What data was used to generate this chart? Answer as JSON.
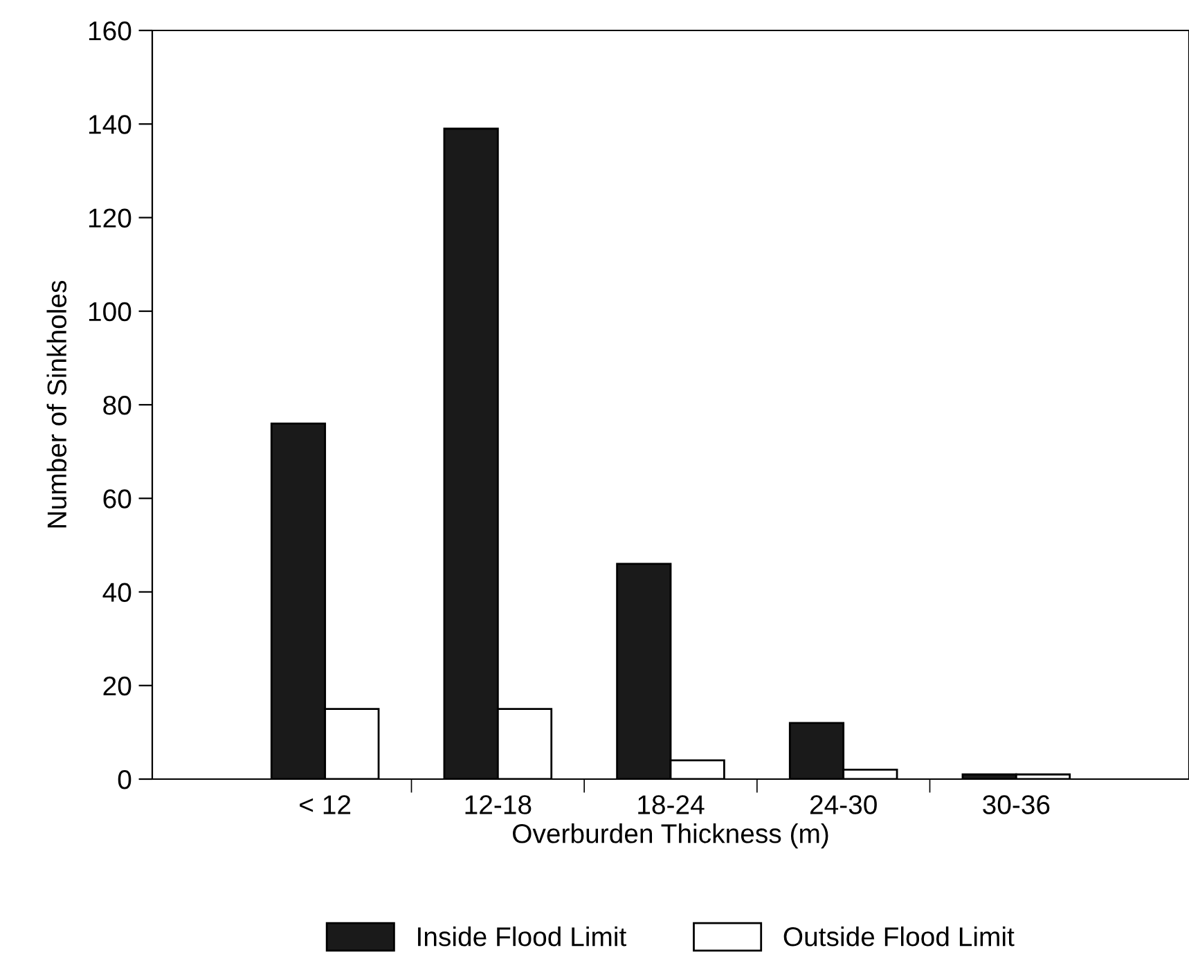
{
  "chart_data": {
    "type": "bar",
    "xlabel": "Overburden Thickness (m)",
    "ylabel": "Number of Sinkholes",
    "categories": [
      "< 12",
      "12-18",
      "18-24",
      "24-30",
      "30-36"
    ],
    "series": [
      {
        "name": "Inside Flood Limit",
        "color": "#1a1a1a",
        "values": [
          76,
          139,
          46,
          12,
          1
        ]
      },
      {
        "name": "Outside Flood Limit",
        "color": "#ffffff",
        "values": [
          15,
          15,
          4,
          2,
          1
        ]
      }
    ],
    "ylim": [
      0,
      160
    ],
    "yticks": [
      0,
      20,
      40,
      60,
      80,
      100,
      120,
      140,
      160
    ],
    "grid": false,
    "legend": "bottom"
  }
}
